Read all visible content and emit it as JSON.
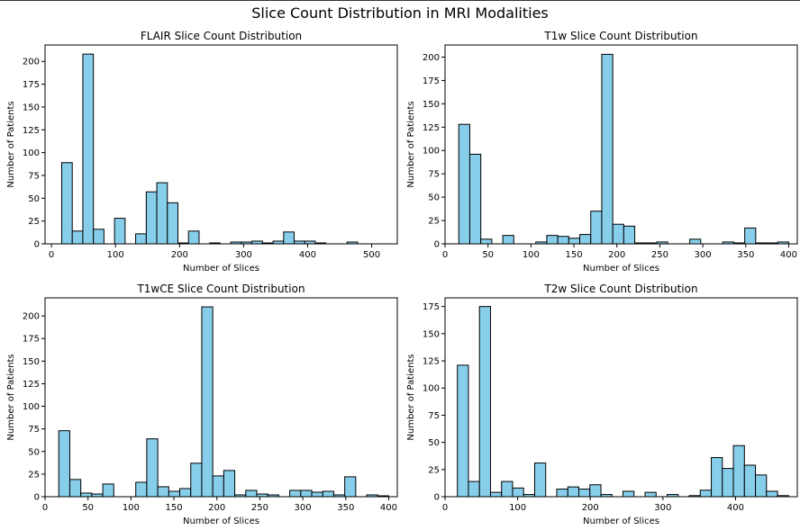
{
  "figure": {
    "title": "Slice Count Distribution in MRI Modalities"
  },
  "chart_data": [
    {
      "type": "bar",
      "title": "FLAIR Slice Count Distribution",
      "xlabel": "Number of Slices",
      "ylabel": "Number of Patients",
      "xlim": [
        -10,
        540
      ],
      "ylim": [
        0,
        218
      ],
      "xticks": [
        0,
        100,
        200,
        300,
        400,
        500
      ],
      "yticks": [
        0,
        25,
        50,
        75,
        100,
        125,
        150,
        175,
        200
      ],
      "bin_start": 16,
      "bin_width": 16.5,
      "values": [
        89,
        14,
        208,
        16,
        0,
        28,
        0,
        11,
        57,
        67,
        45,
        1,
        14,
        0,
        1,
        0,
        2,
        2,
        3,
        1,
        3,
        13,
        3,
        3,
        1,
        0,
        0,
        2
      ],
      "bar_color": "#87ceeb",
      "edge_color": "#000000",
      "grid": false
    },
    {
      "type": "bar",
      "title": "T1w Slice Count Distribution",
      "xlabel": "Number of Slices",
      "ylabel": "Number of Patients",
      "xlim": [
        0,
        410
      ],
      "ylim": [
        0,
        213
      ],
      "xticks": [
        0,
        50,
        100,
        150,
        200,
        250,
        300,
        350,
        400
      ],
      "yticks": [
        0,
        25,
        50,
        75,
        100,
        125,
        150,
        175,
        200
      ],
      "bin_start": 16,
      "bin_width": 12.8,
      "values": [
        128,
        96,
        5,
        0,
        9,
        0,
        0,
        2,
        9,
        8,
        6,
        10,
        35,
        203,
        21,
        19,
        1,
        1,
        2,
        0,
        0,
        5,
        0,
        0,
        2,
        1,
        17,
        1,
        1,
        2
      ],
      "bar_color": "#87ceeb",
      "edge_color": "#000000",
      "grid": false
    },
    {
      "type": "bar",
      "title": "T1wCE Slice Count Distribution",
      "xlabel": "Number of Slices",
      "ylabel": "Number of Patients",
      "xlim": [
        0,
        410
      ],
      "ylim": [
        0,
        220
      ],
      "xticks": [
        0,
        50,
        100,
        150,
        200,
        250,
        300,
        350,
        400
      ],
      "yticks": [
        0,
        25,
        50,
        75,
        100,
        125,
        150,
        175,
        200
      ],
      "bin_start": 16,
      "bin_width": 12.8,
      "values": [
        73,
        19,
        4,
        3,
        14,
        0,
        0,
        16,
        64,
        11,
        6,
        9,
        37,
        210,
        23,
        29,
        2,
        7,
        3,
        2,
        0,
        7,
        7,
        5,
        6,
        2,
        22,
        0,
        2,
        1
      ],
      "bar_color": "#87ceeb",
      "edge_color": "#000000",
      "grid": false
    },
    {
      "type": "bar",
      "title": "T2w Slice Count Distribution",
      "xlabel": "Number of Slices",
      "ylabel": "Number of Patients",
      "xlim": [
        0,
        485
      ],
      "ylim": [
        0,
        183
      ],
      "xticks": [
        0,
        100,
        200,
        300,
        400
      ],
      "yticks": [
        0,
        25,
        50,
        75,
        100,
        125,
        150,
        175
      ],
      "bin_start": 17,
      "bin_width": 15.2,
      "values": [
        121,
        14,
        175,
        4,
        14,
        8,
        2,
        31,
        0,
        7,
        9,
        7,
        11,
        2,
        0,
        5,
        0,
        4,
        0,
        2,
        0,
        1,
        6,
        36,
        26,
        47,
        29,
        20,
        5,
        1
      ],
      "bar_color": "#87ceeb",
      "edge_color": "#000000",
      "grid": false
    }
  ]
}
